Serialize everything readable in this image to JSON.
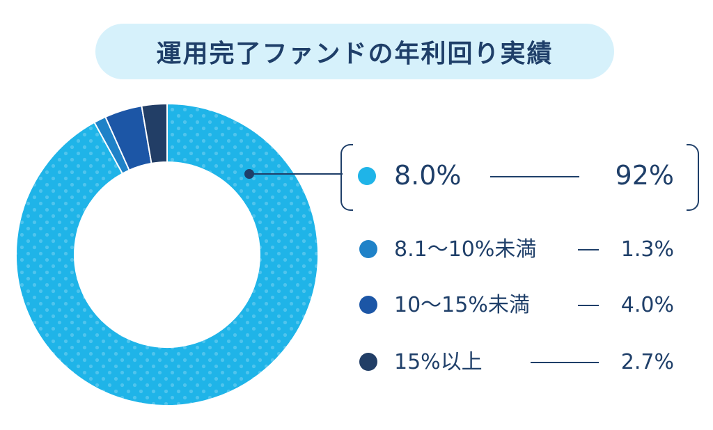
{
  "title": "運用完了ファンドの年利回り実績",
  "colors": {
    "title_bg": "#d6f1fb",
    "text": "#1f3f69",
    "seg1": "#1fb4e8",
    "seg2": "#1f82c8",
    "seg3": "#1c56a6",
    "seg4": "#223e66"
  },
  "legend": [
    {
      "label": "8.0%",
      "value": "92%"
    },
    {
      "label": "8.1〜10%未満",
      "value": "1.3%"
    },
    {
      "label": "10〜15%未満",
      "value": "4.0%"
    },
    {
      "label": "15%以上",
      "value": "2.7%"
    }
  ],
  "chart_data": {
    "type": "pie",
    "variant": "donut",
    "title": "運用完了ファンドの年利回り実績",
    "categories": [
      "8.0%",
      "8.1〜10%未満",
      "10〜15%未満",
      "15%以上"
    ],
    "values": [
      92,
      1.3,
      4.0,
      2.7
    ],
    "display_values": [
      "92%",
      "1.3%",
      "4.0%",
      "2.7%"
    ],
    "legend_position": "right"
  }
}
